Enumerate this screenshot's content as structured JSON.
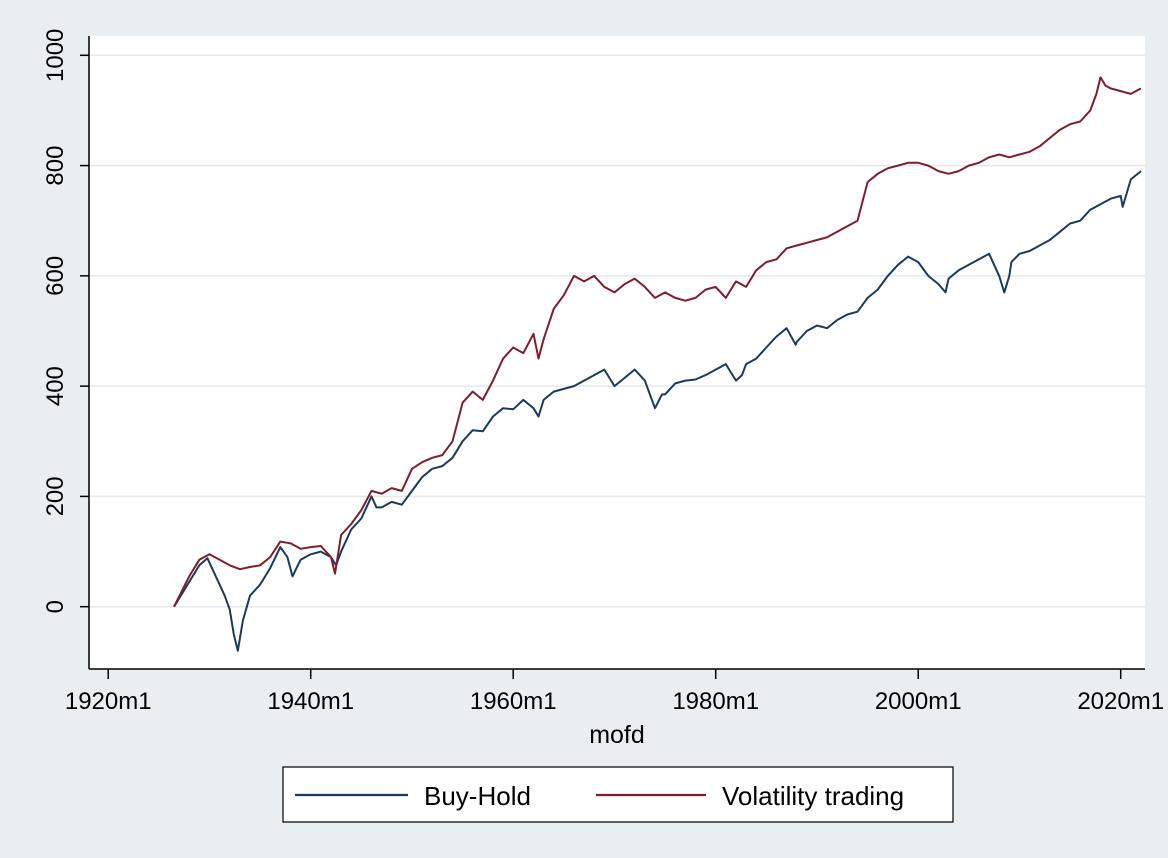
{
  "chart_data": {
    "type": "line",
    "xlabel": "mofd",
    "ylabel": "",
    "title": "",
    "x_ticks": [
      "1920m1",
      "1940m1",
      "1960m1",
      "1980m1",
      "2000m1",
      "2020m1"
    ],
    "y_ticks": [
      "0",
      "200",
      "400",
      "600",
      "800",
      "1000"
    ],
    "xlim": [
      1918.2,
      2022.4
    ],
    "ylim": [
      -113,
      1035
    ],
    "grid": true,
    "legend": {
      "placement": "bottom"
    },
    "series": [
      {
        "name": "Buy-Hold",
        "color": "#1a3a5e",
        "x": [
          1926.5,
          1928,
          1929,
          1929.8,
          1930.5,
          1931,
          1931.5,
          1932,
          1932.4,
          1932.8,
          1933.3,
          1934,
          1935,
          1936,
          1937,
          1937.7,
          1938.2,
          1938.6,
          1939,
          1940,
          1941,
          1942,
          1942.5,
          1943,
          1944,
          1945,
          1946,
          1946.5,
          1947,
          1948,
          1949,
          1950,
          1951,
          1952,
          1953,
          1954,
          1955,
          1956,
          1957,
          1958,
          1959,
          1960,
          1961,
          1962,
          1962.5,
          1963,
          1964,
          1965,
          1966,
          1967,
          1968,
          1969,
          1970,
          1971,
          1972,
          1973,
          1974,
          1974.7,
          1975,
          1976,
          1977,
          1978,
          1979,
          1980,
          1981,
          1982,
          1982.6,
          1983,
          1984,
          1985,
          1986,
          1987,
          1987.9,
          1988,
          1989,
          1990,
          1991,
          1992,
          1993,
          1994,
          1995,
          1996,
          1997,
          1998,
          1999,
          2000,
          2001,
          2002,
          2002.7,
          2003,
          2004,
          2005,
          2006,
          2007,
          2008,
          2008.5,
          2009,
          2009.2,
          2010,
          2011,
          2012,
          2013,
          2014,
          2015,
          2016,
          2017,
          2018,
          2019,
          2020,
          2020.2,
          2021,
          2022
        ],
        "values": [
          0,
          45,
          75,
          88,
          60,
          40,
          20,
          -5,
          -50,
          -80,
          -25,
          20,
          40,
          70,
          108,
          90,
          55,
          70,
          85,
          95,
          100,
          90,
          75,
          100,
          140,
          160,
          200,
          180,
          180,
          190,
          185,
          210,
          235,
          250,
          255,
          270,
          300,
          320,
          318,
          345,
          360,
          358,
          375,
          360,
          345,
          375,
          390,
          395,
          400,
          410,
          420,
          430,
          400,
          415,
          430,
          410,
          360,
          385,
          385,
          405,
          410,
          412,
          420,
          430,
          440,
          410,
          420,
          440,
          450,
          470,
          490,
          505,
          475,
          480,
          500,
          510,
          505,
          520,
          530,
          535,
          560,
          575,
          600,
          620,
          635,
          625,
          600,
          585,
          570,
          595,
          610,
          620,
          630,
          640,
          600,
          570,
          600,
          625,
          640,
          645,
          655,
          665,
          680,
          695,
          700,
          720,
          730,
          740,
          745,
          725,
          775,
          790
        ]
      },
      {
        "name": "Volatility trading",
        "color": "#7e1e2b",
        "x": [
          1926.5,
          1928,
          1929,
          1930,
          1931,
          1932,
          1933,
          1934,
          1935,
          1936,
          1937,
          1938,
          1939,
          1940,
          1941,
          1942,
          1942.4,
          1943,
          1944,
          1945,
          1946,
          1947,
          1948,
          1949,
          1950,
          1951,
          1952,
          1953,
          1954,
          1955,
          1956,
          1957,
          1958,
          1959,
          1960,
          1961,
          1962,
          1962.5,
          1963,
          1964,
          1965,
          1966,
          1967,
          1968,
          1969,
          1970,
          1971,
          1972,
          1973,
          1974,
          1975,
          1976,
          1977,
          1978,
          1979,
          1980,
          1981,
          1982,
          1983,
          1984,
          1985,
          1986,
          1987,
          1988,
          1989,
          1990,
          1991,
          1992,
          1993,
          1994,
          1995,
          1996,
          1997,
          1998,
          1999,
          2000,
          2001,
          2002,
          2003,
          2004,
          2005,
          2006,
          2007,
          2008,
          2009,
          2010,
          2011,
          2012,
          2013,
          2014,
          2015,
          2016,
          2017,
          2017.6,
          2018,
          2018.5,
          2019,
          2020,
          2021,
          2022
        ],
        "values": [
          0,
          55,
          85,
          95,
          85,
          75,
          68,
          72,
          75,
          90,
          118,
          115,
          105,
          108,
          110,
          90,
          60,
          130,
          150,
          175,
          210,
          205,
          215,
          210,
          250,
          262,
          270,
          275,
          300,
          370,
          390,
          375,
          410,
          450,
          470,
          460,
          495,
          450,
          485,
          540,
          565,
          600,
          590,
          600,
          580,
          570,
          585,
          595,
          580,
          560,
          570,
          560,
          555,
          560,
          575,
          580,
          560,
          590,
          580,
          610,
          625,
          630,
          650,
          655,
          660,
          665,
          670,
          680,
          690,
          700,
          770,
          785,
          795,
          800,
          805,
          805,
          800,
          790,
          785,
          790,
          800,
          805,
          815,
          820,
          815,
          820,
          825,
          835,
          850,
          865,
          875,
          880,
          900,
          930,
          960,
          945,
          940,
          935,
          930,
          940
        ]
      }
    ]
  }
}
